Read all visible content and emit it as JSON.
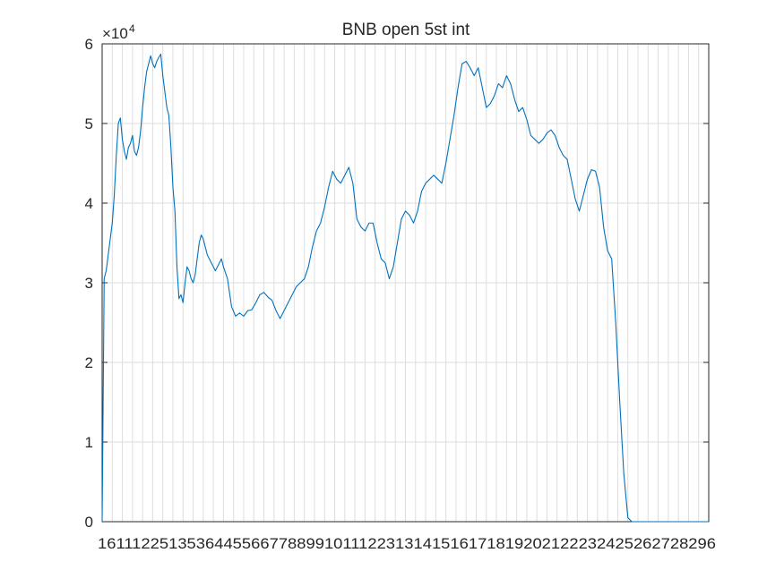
{
  "chart_data": {
    "type": "line",
    "title": "BNB open 5st int",
    "xlabel": "",
    "ylabel": "",
    "ylim": [
      0,
      6
    ],
    "xlim": [
      0,
      300
    ],
    "y_exponent_label": "×10",
    "y_exponent_power": "4",
    "y_ticks": [
      0,
      1,
      2,
      3,
      4,
      5,
      6
    ],
    "y_tick_labels": [
      "0",
      "1",
      "2",
      "3",
      "4",
      "5",
      "6"
    ],
    "x_tick_labels_visible": "16111225135364455667788991011122313141516171819202122232425262728296",
    "grid": true,
    "x_grid_count": 60,
    "series": [
      {
        "color": "#0072bd",
        "x": [
          0,
          1,
          2,
          3,
          4,
          5,
          6,
          7,
          8,
          9,
          10,
          11,
          12,
          13,
          14,
          15,
          16,
          17,
          18,
          19,
          20,
          21,
          22,
          23,
          24,
          25,
          26,
          27,
          28,
          29,
          30,
          31,
          32,
          33,
          34,
          35,
          36,
          37,
          38,
          39,
          40,
          41,
          42,
          43,
          44,
          45,
          46,
          47,
          48,
          49,
          50,
          51,
          52,
          53,
          54,
          55,
          56,
          57,
          58,
          59,
          60,
          62,
          64,
          66,
          68,
          70,
          72,
          74,
          76,
          78,
          80,
          82,
          84,
          86,
          88,
          90,
          92,
          94,
          96,
          98,
          100,
          102,
          104,
          106,
          108,
          110,
          112,
          114,
          116,
          118,
          120,
          122,
          124,
          126,
          128,
          130,
          132,
          134,
          136,
          138,
          140,
          142,
          144,
          146,
          148,
          150,
          152,
          154,
          156,
          158,
          160,
          162,
          164,
          166,
          168,
          170,
          172,
          174,
          176,
          178,
          180,
          182,
          184,
          186,
          188,
          190,
          192,
          194,
          196,
          198,
          200,
          202,
          204,
          206,
          208,
          210,
          212,
          214,
          216,
          218,
          220,
          222,
          224,
          226,
          228,
          230,
          232,
          234,
          236,
          238,
          240,
          242,
          244,
          246,
          248,
          250,
          252,
          254,
          256,
          258,
          260,
          262,
          264,
          266,
          268,
          270,
          272,
          274,
          276,
          278,
          280,
          282,
          284,
          286,
          288,
          290,
          292,
          294,
          296,
          297,
          298,
          299,
          300
        ],
        "values": [
          0,
          3.05,
          3.15,
          3.35,
          3.55,
          3.75,
          4.1,
          4.6,
          5.0,
          5.07,
          4.8,
          4.65,
          4.55,
          4.7,
          4.75,
          4.85,
          4.65,
          4.6,
          4.7,
          4.9,
          5.2,
          5.45,
          5.65,
          5.75,
          5.85,
          5.75,
          5.7,
          5.78,
          5.83,
          5.87,
          5.6,
          5.4,
          5.2,
          5.1,
          4.7,
          4.2,
          3.9,
          3.2,
          2.8,
          2.85,
          2.75,
          3.0,
          3.2,
          3.15,
          3.05,
          3.0,
          3.1,
          3.3,
          3.5,
          3.6,
          3.55,
          3.45,
          3.35,
          3.3,
          3.25,
          3.2,
          3.15,
          3.2,
          3.25,
          3.3,
          3.2,
          3.05,
          2.7,
          2.58,
          2.62,
          2.58,
          2.65,
          2.66,
          2.75,
          2.85,
          2.88,
          2.82,
          2.78,
          2.65,
          2.55,
          2.65,
          2.75,
          2.85,
          2.95,
          3.0,
          3.05,
          3.2,
          3.45,
          3.65,
          3.75,
          3.95,
          4.2,
          4.4,
          4.3,
          4.25,
          4.35,
          4.45,
          4.25,
          3.8,
          3.7,
          3.65,
          3.75,
          3.75,
          3.5,
          3.3,
          3.25,
          3.05,
          3.2,
          3.5,
          3.8,
          3.9,
          3.85,
          3.75,
          3.9,
          4.15,
          4.25,
          4.3,
          4.35,
          4.3,
          4.25,
          4.5,
          4.8,
          5.1,
          5.45,
          5.75,
          5.78,
          5.7,
          5.6,
          5.7,
          5.45,
          5.2,
          5.25,
          5.35,
          5.5,
          5.45,
          5.6,
          5.5,
          5.3,
          5.15,
          5.2,
          5.05,
          4.85,
          4.8,
          4.75,
          4.8,
          4.88,
          4.92,
          4.85,
          4.7,
          4.6,
          4.55,
          4.3,
          4.05,
          3.9,
          4.1,
          4.3,
          4.42,
          4.4,
          4.2,
          3.7,
          3.4,
          3.3,
          2.5,
          1.5,
          0.6,
          0.05,
          0,
          0,
          0,
          0,
          0,
          0,
          0,
          0,
          0,
          0,
          0,
          0,
          0,
          0,
          0,
          0,
          0,
          0,
          0,
          0,
          0,
          0
        ]
      }
    ]
  }
}
